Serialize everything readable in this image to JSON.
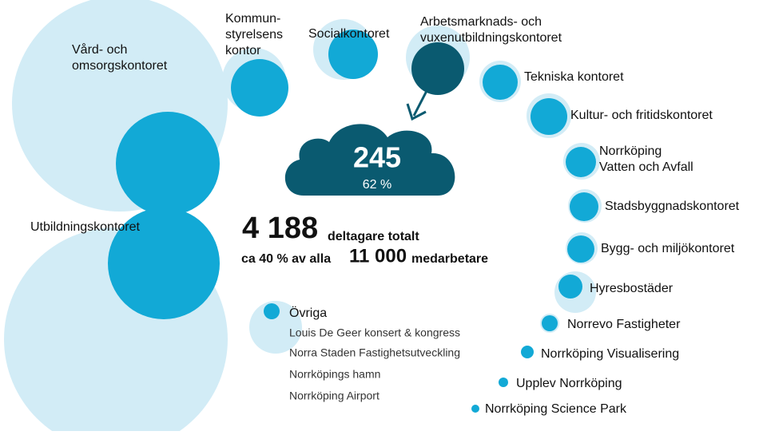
{
  "offices": [
    {
      "lines": [
        "Vård- och",
        "omsorgskontoret"
      ]
    },
    {
      "lines": [
        "Utbildningskontoret"
      ]
    },
    {
      "lines": [
        "Kommun-",
        "styrelsens",
        "kontor"
      ]
    },
    {
      "lines": [
        "Socialkontoret"
      ]
    },
    {
      "lines": [
        "Arbetsmarknads- och",
        "vuxenutbildningskontoret"
      ]
    },
    {
      "lines": [
        "Tekniska kontoret"
      ]
    },
    {
      "lines": [
        "Kultur- och fritidskontoret"
      ]
    },
    {
      "lines": [
        "Norrköping",
        "Vatten och Avfall"
      ]
    },
    {
      "lines": [
        "Stadsbyggnadskontoret"
      ]
    },
    {
      "lines": [
        "Bygg- och miljökontoret"
      ]
    },
    {
      "lines": [
        "Hyresbostäder"
      ]
    },
    {
      "lines": [
        "Norrevo Fastigheter"
      ]
    },
    {
      "lines": [
        "Norrköping Visualisering"
      ]
    },
    {
      "lines": [
        "Upplev Norrköping"
      ]
    },
    {
      "lines": [
        "Norrköping Science Park"
      ]
    }
  ],
  "cloud": {
    "value": "245",
    "share": "62 %"
  },
  "totals": {
    "participants": "4 188",
    "participants_label": "deltagare totalt",
    "prefix": "ca 40 % av alla",
    "employees": "11 000",
    "employees_label": "medarbetare"
  },
  "others": {
    "title": "Övriga",
    "items": [
      "Louis De Geer konsert & kongress",
      "Norra Staden Fastighetsutveckling",
      "Norrköpings hamn",
      "Norrköping Airport"
    ]
  }
}
